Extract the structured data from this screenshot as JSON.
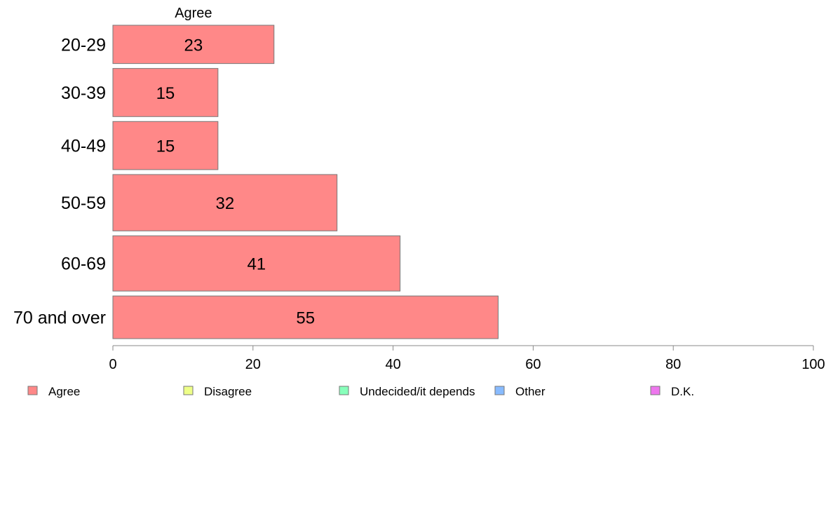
{
  "chart_data": {
    "type": "bar",
    "orientation": "horizontal",
    "stacked": true,
    "categories": [
      "20-29",
      "30-39",
      "40-49",
      "50-59",
      "60-69",
      "70 and over"
    ],
    "series": [
      {
        "name": "Agree",
        "values": [
          23,
          15,
          15,
          32,
          41,
          55
        ],
        "color": "#ff8888"
      },
      {
        "name": "Disagree",
        "values": [
          0,
          0,
          0,
          0,
          0,
          0
        ],
        "color": "#eeff88"
      },
      {
        "name": "Undecided/it depends",
        "values": [
          0,
          0,
          0,
          0,
          0,
          0
        ],
        "color": "#88ffbb"
      },
      {
        "name": "Other",
        "values": [
          0,
          0,
          0,
          0,
          0,
          0
        ],
        "color": "#88bbff"
      },
      {
        "name": "D.K.",
        "values": [
          0,
          0,
          0,
          0,
          0,
          0
        ],
        "color": "#ee77ee"
      }
    ],
    "bar_weights": [
      0.7,
      0.88,
      0.88,
      1.03,
      1.01,
      0.78
    ],
    "series_header": "Agree",
    "xlim": [
      0,
      100
    ],
    "xticks": [
      0,
      20,
      40,
      60,
      80,
      100
    ],
    "grid": false,
    "legend_position": "bottom",
    "axis_color": "#888888",
    "bar_edge_color": "#777777"
  }
}
